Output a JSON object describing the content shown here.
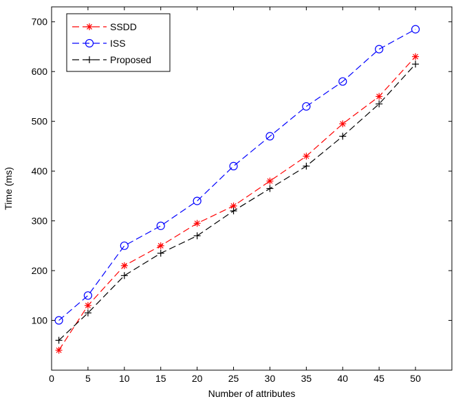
{
  "chart_data": {
    "type": "line",
    "title": "",
    "xlabel": "Number of attributes",
    "ylabel": "Time (ms)",
    "xlim": [
      0,
      55
    ],
    "ylim": [
      0,
      730
    ],
    "xticks": [
      0,
      5,
      10,
      15,
      20,
      25,
      30,
      35,
      40,
      45,
      50
    ],
    "yticks": [
      100,
      200,
      300,
      400,
      500,
      600,
      700
    ],
    "grid": false,
    "legend_position": "top-left",
    "x": [
      1,
      5,
      10,
      15,
      20,
      25,
      30,
      35,
      40,
      45,
      50
    ],
    "series": [
      {
        "name": "SSDD",
        "color": "#ff0000",
        "marker": "asterisk",
        "linestyle": "dashed",
        "values": [
          40,
          130,
          210,
          250,
          295,
          330,
          380,
          430,
          495,
          550,
          630
        ]
      },
      {
        "name": "ISS",
        "color": "#0000ff",
        "marker": "circle",
        "linestyle": "dashed",
        "values": [
          100,
          150,
          250,
          290,
          340,
          410,
          470,
          530,
          580,
          645,
          685
        ]
      },
      {
        "name": "Proposed",
        "color": "#000000",
        "marker": "plus",
        "linestyle": "dashed",
        "values": [
          60,
          115,
          190,
          235,
          270,
          320,
          365,
          410,
          470,
          535,
          615
        ]
      }
    ]
  }
}
